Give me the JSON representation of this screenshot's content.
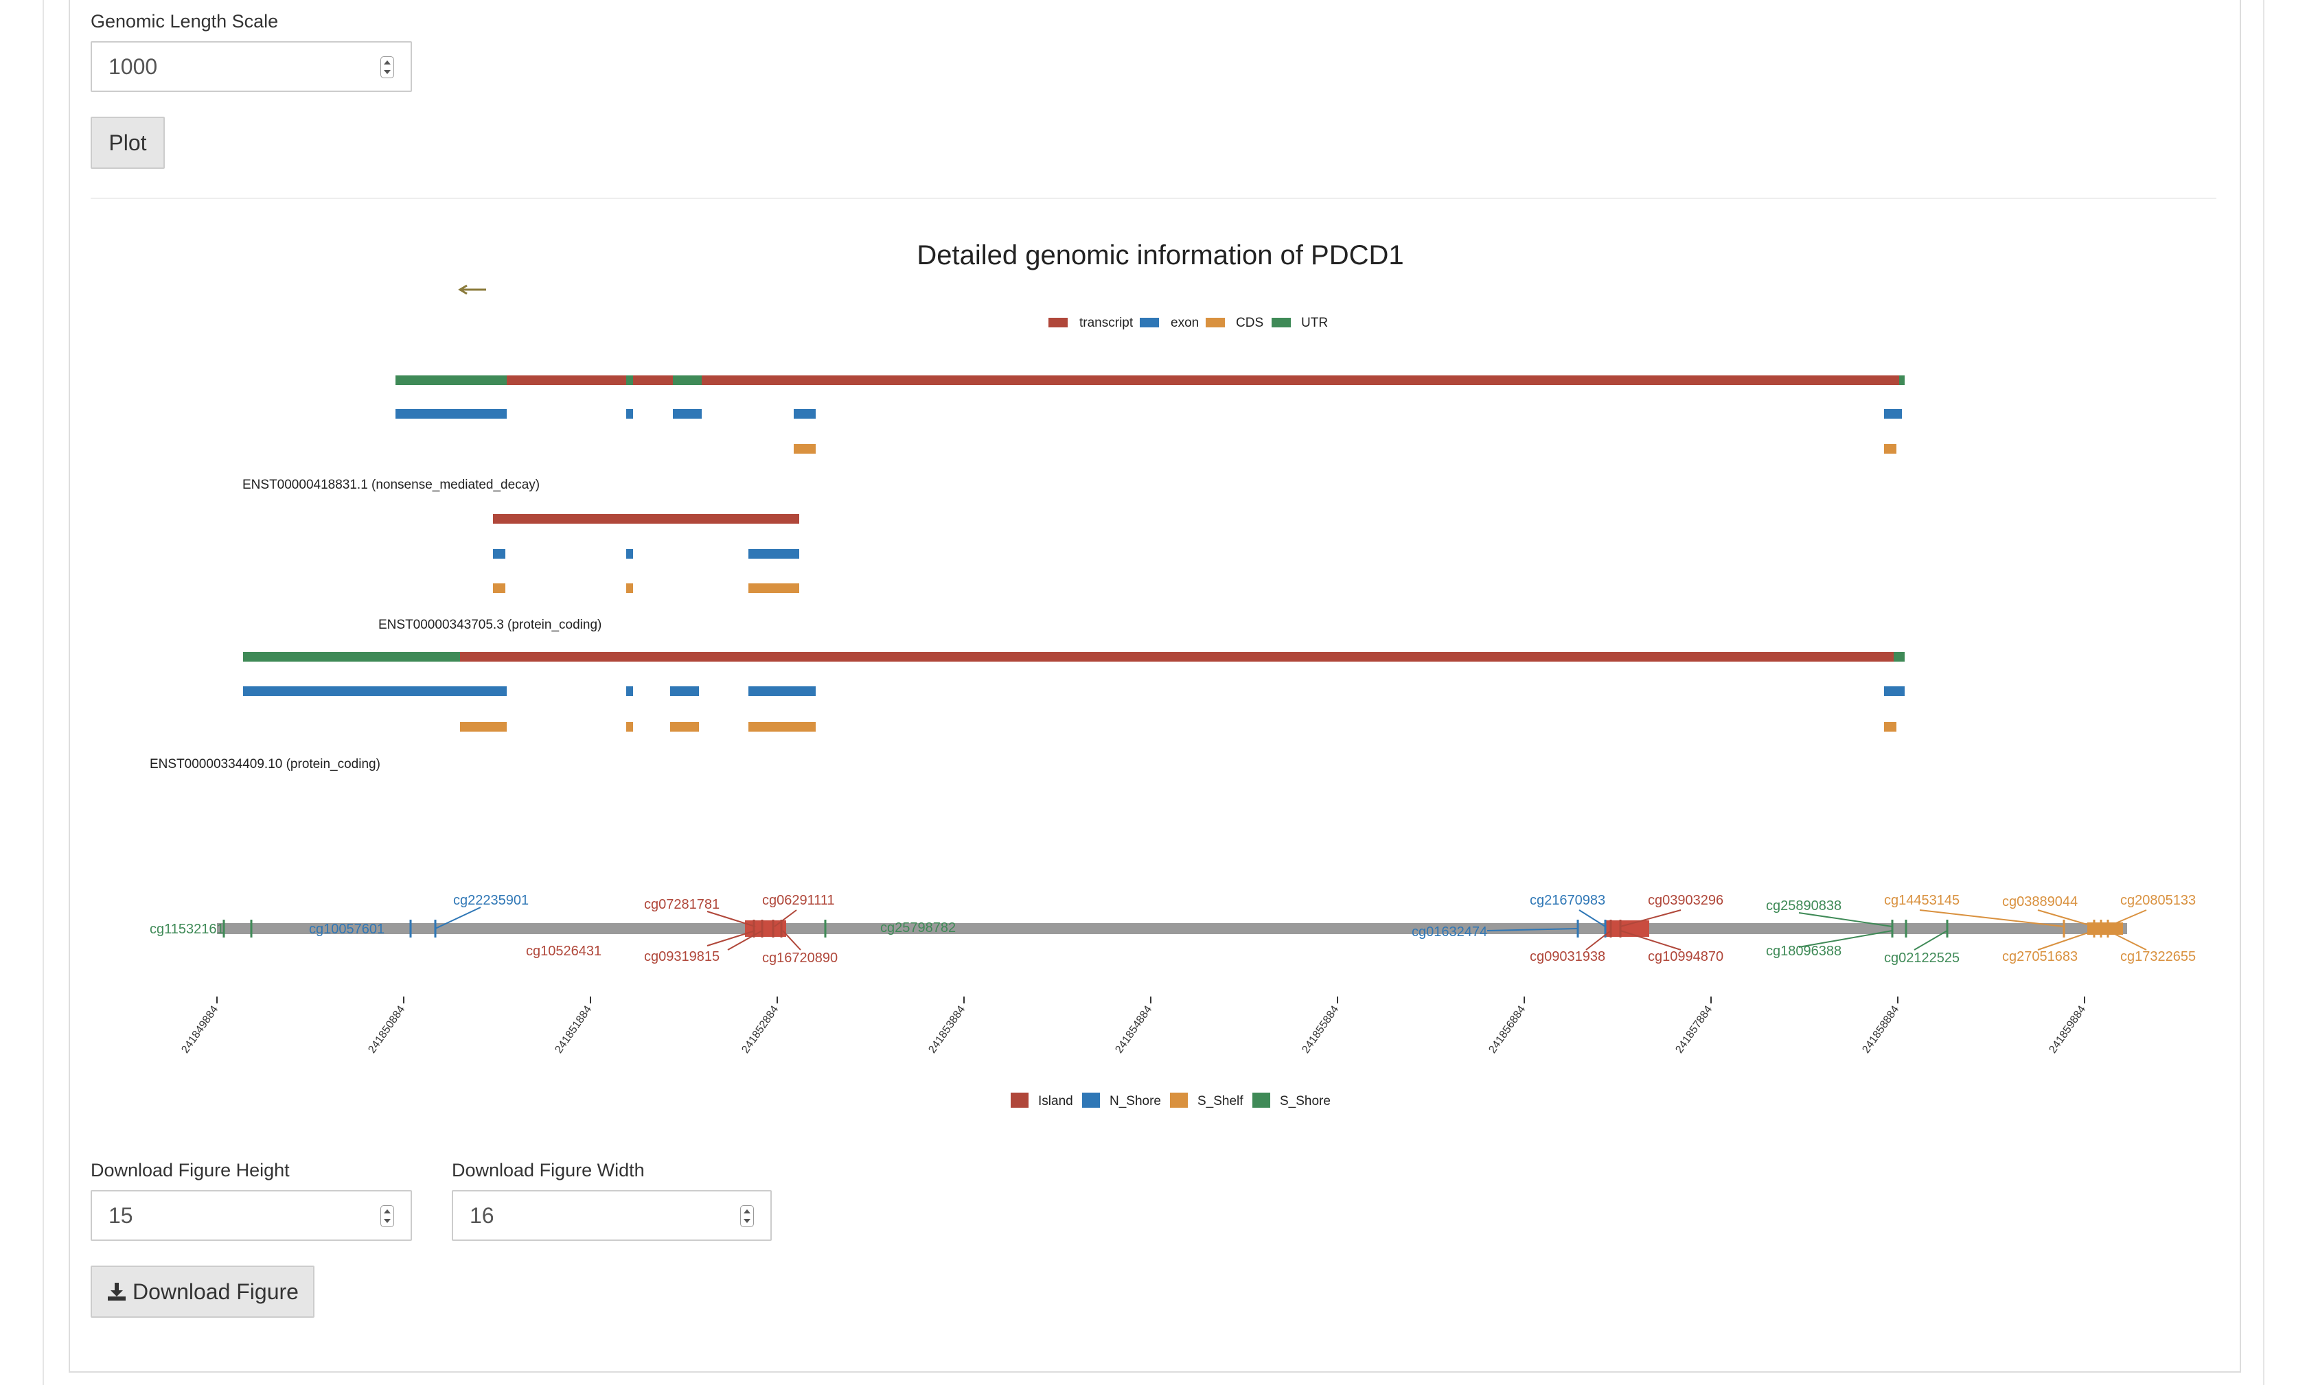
{
  "controls": {
    "length_scale_label": "Genomic Length Scale",
    "length_scale_value": "1000",
    "plot_button": "Plot",
    "download_height_label": "Download Figure Height",
    "download_height_value": "15",
    "download_width_label": "Download Figure Width",
    "download_width_value": "16",
    "download_button": "Download Figure",
    "download_icon": "download-icon"
  },
  "figure": {
    "title": "Detailed genomic information of PDCD1",
    "strand_arrow_icon": "left-arrow-icon",
    "feature_legend": [
      {
        "label": "transcript",
        "color": "#b0473a"
      },
      {
        "label": "exon",
        "color": "#2f77b6"
      },
      {
        "label": "CDS",
        "color": "#d9913f"
      },
      {
        "label": "UTR",
        "color": "#3f8a57"
      }
    ],
    "transcripts": [
      {
        "name": "ENST00000418831.1 (nonsense_mediated_decay)"
      },
      {
        "name": "ENST00000343705.3 (protein_coding)"
      },
      {
        "name": "ENST00000334409.10 (protein_coding)"
      }
    ],
    "cpg_ticks": [
      "241849884",
      "241850884",
      "241851884",
      "241852884",
      "241853884",
      "241854884",
      "241855884",
      "241856884",
      "241857884",
      "241858884",
      "241859884"
    ],
    "cpg_legend": [
      {
        "label": "Island",
        "color": "#b0473a"
      },
      {
        "label": "N_Shore",
        "color": "#2f77b6"
      },
      {
        "label": "S_Shelf",
        "color": "#d9913f"
      },
      {
        "label": "S_Shore",
        "color": "#3f8a57"
      }
    ],
    "probes": [
      {
        "id": "cg11532161",
        "type": "S_Shore"
      },
      {
        "id": "cg10057601",
        "type": "N_Shore"
      },
      {
        "id": "cg22235901",
        "type": "N_Shore"
      },
      {
        "id": "cg07281781",
        "type": "Island"
      },
      {
        "id": "cg06291111",
        "type": "Island"
      },
      {
        "id": "cg10526431",
        "type": "Island"
      },
      {
        "id": "cg09319815",
        "type": "Island"
      },
      {
        "id": "cg16720890",
        "type": "Island"
      },
      {
        "id": "cg25798782",
        "type": "S_Shore"
      },
      {
        "id": "cg01632474",
        "type": "N_Shore"
      },
      {
        "id": "cg21670983",
        "type": "N_Shore"
      },
      {
        "id": "cg09031938",
        "type": "Island"
      },
      {
        "id": "cg03903296",
        "type": "Island"
      },
      {
        "id": "cg10994870",
        "type": "Island"
      },
      {
        "id": "cg25890838",
        "type": "S_Shore"
      },
      {
        "id": "cg18096388",
        "type": "S_Shore"
      },
      {
        "id": "cg02122525",
        "type": "S_Shore"
      },
      {
        "id": "cg14453145",
        "type": "S_Shelf"
      },
      {
        "id": "cg27051683",
        "type": "S_Shelf"
      },
      {
        "id": "cg03889044",
        "type": "S_Shelf"
      },
      {
        "id": "cg20805133",
        "type": "S_Shelf"
      },
      {
        "id": "cg17322655",
        "type": "S_Shelf"
      }
    ]
  }
}
